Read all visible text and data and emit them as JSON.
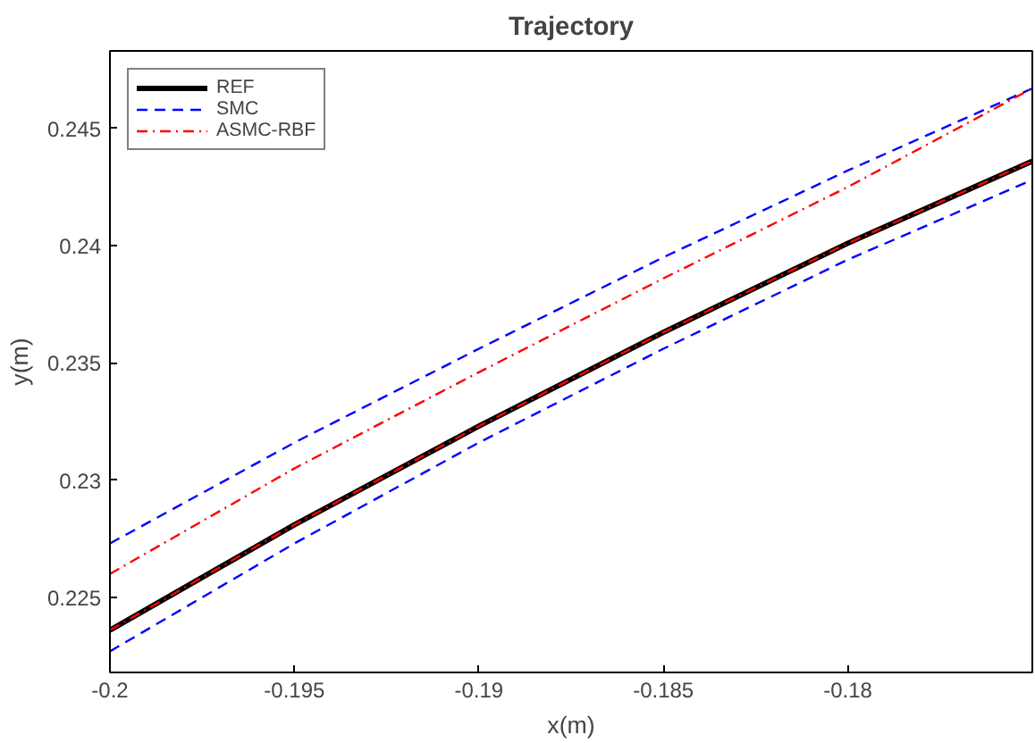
{
  "chart_data": {
    "type": "line",
    "title": "Trajectory",
    "xlabel": "x(m)",
    "ylabel": "y(m)",
    "x": [
      -0.2,
      -0.195,
      -0.19,
      -0.185,
      -0.18,
      -0.175
    ],
    "series": [
      {
        "name": "REF",
        "color": "#000000",
        "line_style": "solid",
        "values": [
          0.2236,
          0.2281,
          0.2323,
          0.2363,
          0.2401,
          0.2436
        ]
      },
      {
        "name": "SMC",
        "color": "#0000ff",
        "line_style": "dashed",
        "values": [
          0.2273,
          0.2316,
          0.2356,
          0.2395,
          0.2432,
          0.2467
        ]
      },
      {
        "color": "#0000ff",
        "line_style": "dashed",
        "values": [
          0.2227,
          0.2273,
          0.2316,
          0.2356,
          0.2394,
          0.2428
        ]
      },
      {
        "name": "ASMC-RBF",
        "color": "#ff0000",
        "line_style": "dashdot",
        "values": [
          0.226,
          0.2305,
          0.2346,
          0.2386,
          0.2425,
          0.2467
        ]
      },
      {
        "color": "#ff0000",
        "line_style": "dashdot",
        "values": [
          0.2236,
          0.2281,
          0.2323,
          0.2363,
          0.2401,
          0.2436
        ]
      }
    ],
    "xlim": [
      -0.2,
      -0.175
    ],
    "ylim": [
      0.2218,
      0.2483
    ],
    "xticks": [
      -0.2,
      -0.195,
      -0.19,
      -0.185,
      -0.18
    ],
    "yticks": [
      0.225,
      0.23,
      0.235,
      0.24,
      0.245
    ],
    "grid": false,
    "legend": "top left"
  }
}
